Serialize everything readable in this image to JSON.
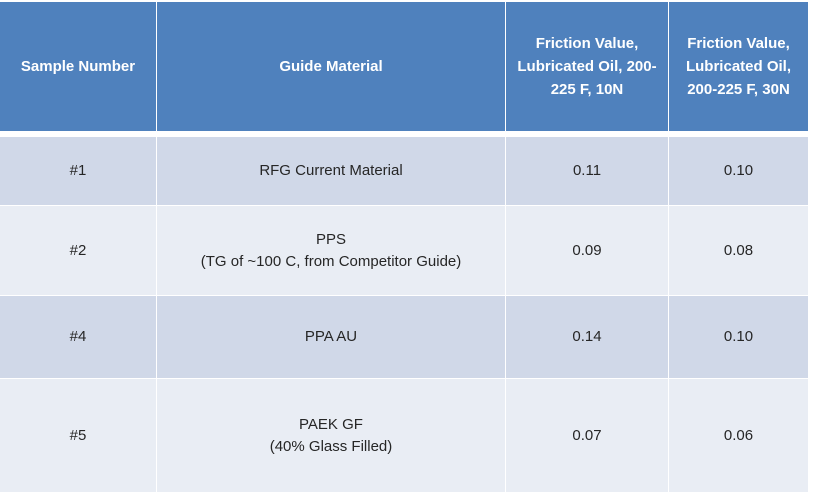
{
  "table": {
    "header": [
      "Sample Number",
      "Guide Material",
      "Friction Value, Lubricated Oil, 200-225 F, 10N",
      "Friction Value, Lubricated Oil, 200-225 F, 30N"
    ],
    "rows": [
      {
        "sample": "#1",
        "material": [
          "RFG Current Material"
        ],
        "friction_10n": "0.11",
        "friction_30n": "0.10"
      },
      {
        "sample": "#2",
        "material": [
          "PPS",
          "(TG of ~100 C, from Competitor Guide)"
        ],
        "friction_10n": "0.09",
        "friction_30n": "0.08"
      },
      {
        "sample": "#4",
        "material": [
          "PPA AU"
        ],
        "friction_10n": "0.14",
        "friction_30n": "0.10"
      },
      {
        "sample": "#5",
        "material": [
          "PAEK GF",
          "(40% Glass Filled)"
        ],
        "friction_10n": "0.07",
        "friction_30n": "0.06"
      }
    ]
  }
}
